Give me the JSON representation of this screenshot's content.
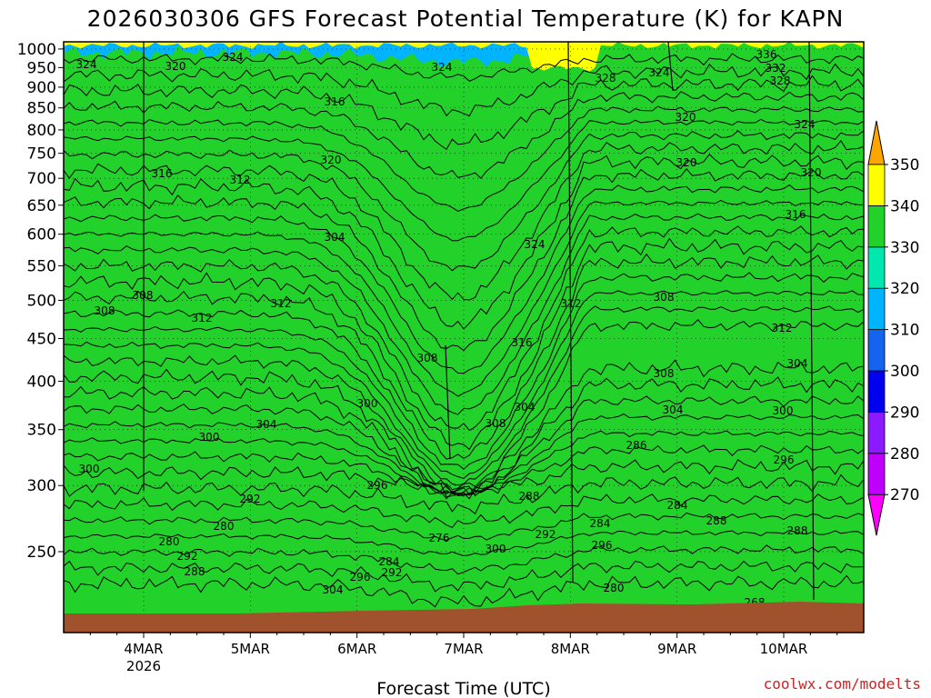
{
  "title": "2026030306 GFS Forecast Potential Temperature (K) for KAPN",
  "xlabel": "Forecast Time (UTC)",
  "credit": "coolwx.com/modelts",
  "chart_data": {
    "type": "contour",
    "quantity": "Potential Temperature",
    "units": "K",
    "x_axis": {
      "categories": [
        "4MAR",
        "5MAR",
        "6MAR",
        "7MAR",
        "8MAR",
        "9MAR",
        "10MAR"
      ],
      "sublabel": "2026",
      "range_days": [
        3.25,
        10.75
      ]
    },
    "y_axis": {
      "scale": "log-pressure",
      "inverted": true,
      "ticks": [
        250,
        300,
        350,
        400,
        450,
        500,
        550,
        600,
        650,
        700,
        750,
        800,
        850,
        900,
        950,
        1000
      ],
      "ylim": [
        1020,
        200
      ]
    },
    "colorbar": {
      "levels": [
        270,
        280,
        290,
        300,
        310,
        320,
        330,
        340,
        350
      ],
      "colors": [
        "#ff00ff",
        "#c000ff",
        "#8c1aff",
        "#0000ee",
        "#1464f0",
        "#00b4ff",
        "#00e8b0",
        "#22d22b",
        "#ffff00",
        "#ffa500"
      ]
    },
    "contour_interval": 4,
    "contour_labels": [
      "324",
      "320",
      "324",
      "324",
      "328",
      "324",
      "336",
      "332",
      "328",
      "324",
      "320",
      "316",
      "320",
      "312",
      "316",
      "320",
      "316",
      "320",
      "324",
      "304",
      "308",
      "308",
      "312",
      "312",
      "308",
      "312",
      "316",
      "308",
      "312",
      "308",
      "304",
      "300",
      "304",
      "308",
      "304",
      "300",
      "304",
      "300",
      "286",
      "296",
      "300",
      "296",
      "292",
      "288",
      "284",
      "280",
      "288",
      "284",
      "280",
      "276",
      "296",
      "292",
      "288",
      "284",
      "292",
      "296",
      "304",
      "300",
      "292",
      "280",
      "288",
      "268"
    ]
  }
}
